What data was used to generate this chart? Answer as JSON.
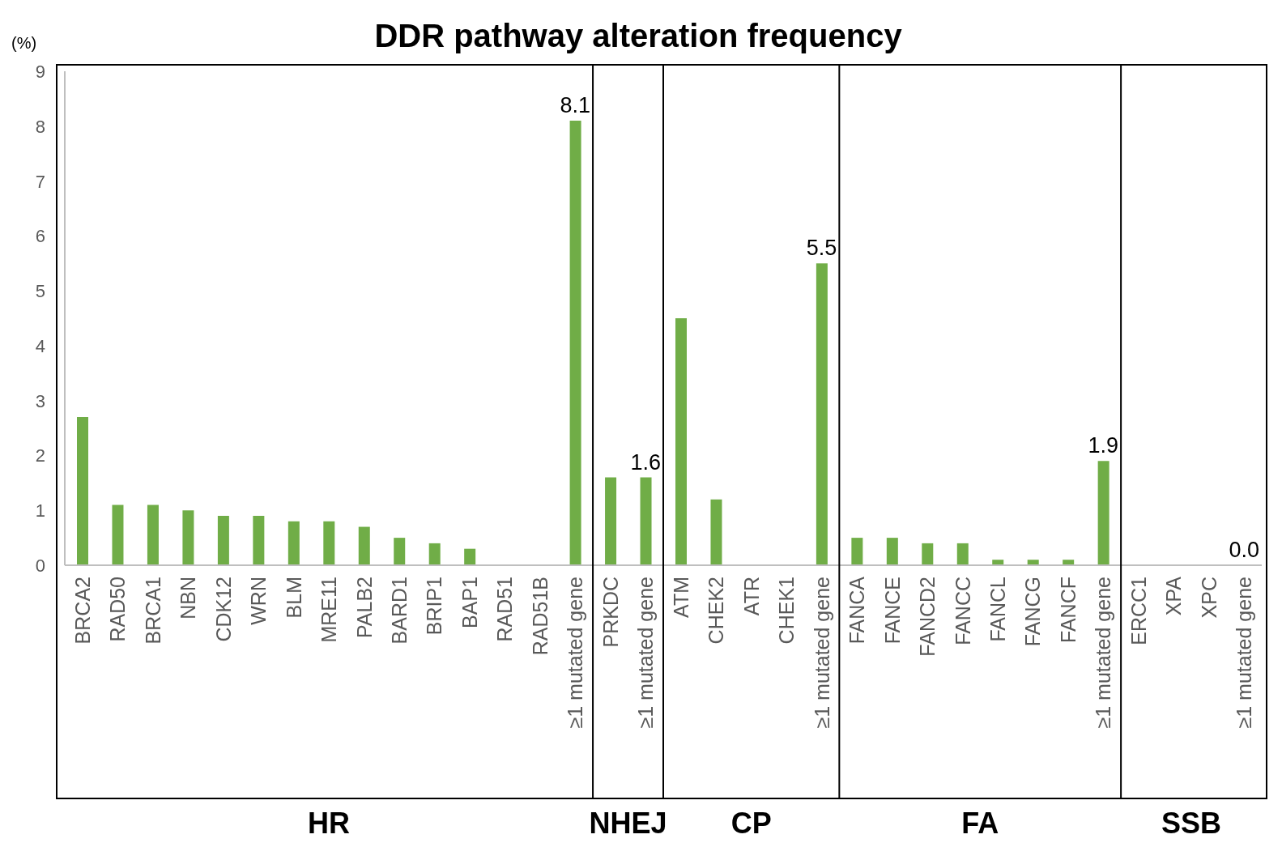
{
  "chart_data": {
    "type": "bar",
    "title": "DDR pathway alteration frequency",
    "ylabel": "(%)",
    "categories": [
      "BRCA2",
      "RAD50",
      "BRCA1",
      "NBN",
      "CDK12",
      "WRN",
      "BLM",
      "MRE11",
      "PALB2",
      "BARD1",
      "BRIP1",
      "BAP1",
      "RAD51",
      "RAD51B",
      "≥1 mutated gene",
      "PRKDC",
      "≥1 mutated gene",
      "ATM",
      "CHEK2",
      "ATR",
      "CHEK1",
      "≥1 mutated gene",
      "FANCA",
      "FANCE",
      "FANCD2",
      "FANCC",
      "FANCL",
      "FANCG",
      "FANCF",
      "≥1 mutated gene",
      "ERCC1",
      "XPA",
      "XPC",
      "≥1 mutated gene"
    ],
    "values": [
      2.7,
      1.1,
      1.1,
      1.0,
      0.9,
      0.9,
      0.8,
      0.8,
      0.7,
      0.5,
      0.4,
      0.3,
      0,
      0,
      8.1,
      1.6,
      1.6,
      4.5,
      1.2,
      0,
      0,
      5.5,
      0.5,
      0.5,
      0.4,
      0.4,
      0.1,
      0.1,
      0.1,
      1.9,
      0,
      0,
      0,
      0.0
    ],
    "value_labels": [
      null,
      null,
      null,
      null,
      null,
      null,
      null,
      null,
      null,
      null,
      null,
      null,
      null,
      null,
      "8.1",
      null,
      "1.6",
      null,
      null,
      null,
      null,
      "5.5",
      null,
      null,
      null,
      null,
      null,
      null,
      null,
      "1.9",
      null,
      null,
      null,
      "0.0"
    ],
    "color": "#70ad47",
    "ylim": [
      0,
      9
    ],
    "yticks": [
      0,
      1,
      2,
      3,
      4,
      5,
      6,
      7,
      8,
      9
    ],
    "annotations": [
      "HR",
      "NHEJ",
      "CP",
      "FA",
      "SSB"
    ]
  }
}
